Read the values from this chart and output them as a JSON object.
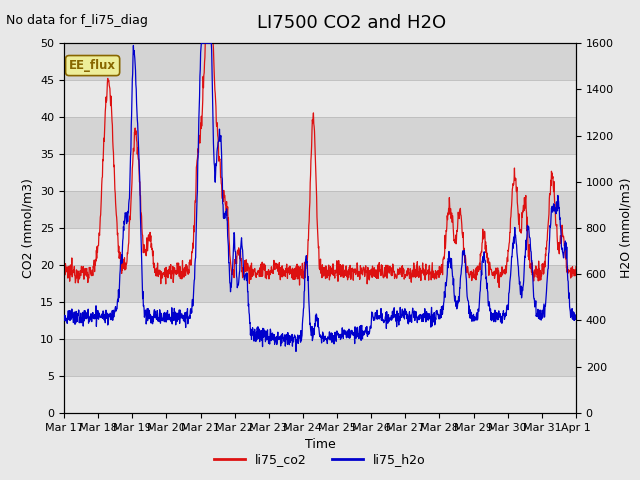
{
  "title": "LI7500 CO2 and H2O",
  "subtitle": "No data for f_li75_diag",
  "xlabel": "Time",
  "ylabel_left": "CO2 (mmol/m3)",
  "ylabel_right": "H2O (mmol/m3)",
  "ylim_left": [
    0,
    50
  ],
  "ylim_right": [
    0,
    1600
  ],
  "legend_entries": [
    "li75_co2",
    "li75_h2o"
  ],
  "color_co2": "#dd1111",
  "color_h2o": "#0000cc",
  "xtick_labels": [
    "Mar 17",
    "Mar 18",
    "Mar 19",
    "Mar 20",
    "Mar 21",
    "Mar 22",
    "Mar 23",
    "Mar 24",
    "Mar 25",
    "Mar 26",
    "Mar 27",
    "Mar 28",
    "Mar 29",
    "Mar 30",
    "Mar 31",
    "Apr 1"
  ],
  "annotation_box_text": "EE_flux",
  "annotation_box_color": "#886600",
  "annotation_box_bg": "#eeee99",
  "background_color": "#e8e8e8",
  "plot_bg_color": "#e0e0e0",
  "band_color_light": "#e8e8e8",
  "band_color_dark": "#d4d4d4",
  "title_fontsize": 13,
  "label_fontsize": 9,
  "tick_fontsize": 8,
  "subtitle_fontsize": 9
}
